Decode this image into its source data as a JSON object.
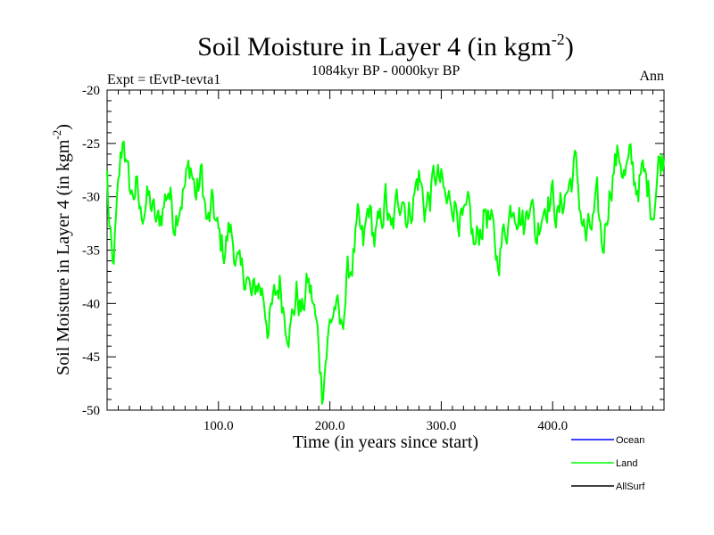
{
  "chart_data": {
    "type": "line",
    "title": "Soil Moisture in Layer 4 (in kgm",
    "title_sup": "-2",
    "title_end": ")",
    "experiment": "Expt = tEvtP-tevta1",
    "period": "1084kyr BP - 0000kyr BP",
    "season": "Ann",
    "xlabel": "Time (in years since start)",
    "ylabel": "Soil Moisture in Layer 4 (in kgm",
    "ylabel_sup": "-2",
    "ylabel_end": ")",
    "xlim": [
      0,
      500
    ],
    "ylim": [
      -50,
      -20
    ],
    "x_ticks": [
      {
        "value": 100,
        "label": "100.0"
      },
      {
        "value": 200,
        "label": "200.0"
      },
      {
        "value": 300,
        "label": "300.0"
      },
      {
        "value": 400,
        "label": "400.0"
      }
    ],
    "y_ticks": [
      {
        "value": -20,
        "label": "-20"
      },
      {
        "value": -25,
        "label": "-25"
      },
      {
        "value": -30,
        "label": "-30"
      },
      {
        "value": -35,
        "label": "-35"
      },
      {
        "value": -40,
        "label": "-40"
      },
      {
        "value": -45,
        "label": "-45"
      },
      {
        "value": -50,
        "label": "-50"
      }
    ],
    "legend": [
      {
        "name": "Ocean",
        "color": "#0000ff"
      },
      {
        "name": "Land",
        "color": "#00ff00"
      },
      {
        "name": "AllSurf",
        "color": "#000000"
      }
    ],
    "series": [
      {
        "name": "Land",
        "color": "#00ff00",
        "anchors_x": [
          0,
          2,
          5,
          8,
          12,
          15,
          18,
          22,
          26,
          30,
          35,
          40,
          45,
          50,
          55,
          60,
          65,
          70,
          75,
          80,
          85,
          90,
          95,
          100,
          105,
          110,
          115,
          120,
          125,
          130,
          135,
          140,
          145,
          150,
          155,
          160,
          165,
          170,
          175,
          180,
          185,
          190,
          193,
          196,
          200,
          205,
          210,
          215,
          220,
          225,
          230,
          235,
          240,
          245,
          250,
          255,
          260,
          265,
          270,
          275,
          280,
          285,
          290,
          295,
          300,
          305,
          310,
          315,
          320,
          325,
          330,
          335,
          340,
          345,
          350,
          355,
          360,
          365,
          370,
          375,
          380,
          385,
          390,
          395,
          400,
          405,
          410,
          415,
          420,
          425,
          430,
          435,
          440,
          445,
          450,
          455,
          460,
          465,
          470,
          475,
          480,
          485,
          490,
          495,
          500
        ],
        "anchors_y": [
          -28,
          -33,
          -37.5,
          -33,
          -27,
          -24,
          -28,
          -30,
          -29,
          -32,
          -30,
          -31,
          -33,
          -31,
          -29,
          -32,
          -30,
          -29,
          -27,
          -30,
          -28,
          -33,
          -31,
          -34,
          -35,
          -33,
          -35,
          -38,
          -37,
          -40,
          -38,
          -39,
          -42,
          -40,
          -38,
          -41,
          -42,
          -39,
          -41,
          -38,
          -40,
          -44,
          -48,
          -45,
          -42,
          -40,
          -43,
          -38,
          -36,
          -33,
          -35,
          -31,
          -34,
          -33,
          -30,
          -34,
          -31,
          -29,
          -32,
          -30,
          -28,
          -31,
          -30,
          -28,
          -29,
          -31,
          -30,
          -31,
          -33,
          -32,
          -35,
          -33,
          -31,
          -33,
          -36,
          -34,
          -32,
          -30,
          -31,
          -33,
          -29,
          -34,
          -31,
          -30,
          -30,
          -32,
          -30,
          -29,
          -27,
          -31,
          -34,
          -33,
          -31,
          -35,
          -30,
          -27,
          -26,
          -28,
          -27,
          -29,
          -28,
          -29,
          -31,
          -27,
          -26
        ],
        "noise_amplitude": 1.6
      }
    ]
  }
}
